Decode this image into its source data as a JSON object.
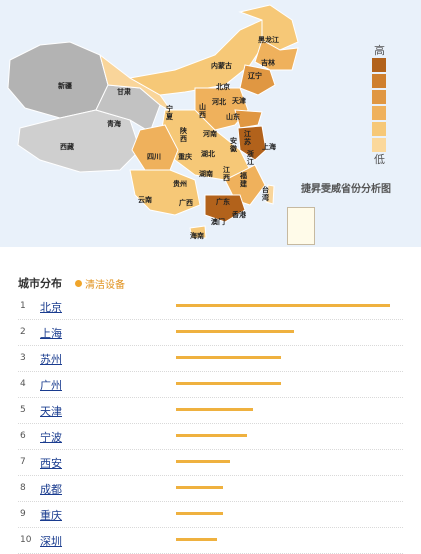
{
  "map": {
    "title": "捷昇雯威省份分析图",
    "legend_high": "高",
    "legend_low": "低",
    "legend_colors": [
      "#b2621b",
      "#cf7f2d",
      "#e09742",
      "#efb15c",
      "#f6c877",
      "#fbd89b"
    ],
    "provinces": [
      "黑龙江",
      "吉林",
      "辽宁",
      "内蒙古",
      "北京",
      "天津",
      "河北",
      "山西",
      "山东",
      "宁夏",
      "甘肃",
      "新疆",
      "西藏",
      "青海",
      "陕西",
      "河南",
      "江苏",
      "安徽",
      "上海",
      "湖北",
      "四川",
      "重庆",
      "浙江",
      "贵州",
      "湖南",
      "江西",
      "福建",
      "台湾",
      "云南",
      "广西",
      "广东",
      "香港",
      "澳门",
      "海南"
    ]
  },
  "list": {
    "title": "城市分布",
    "legend_label": "清洁设备",
    "rows": [
      {
        "rank": "1",
        "city": "北京",
        "value": 100
      },
      {
        "rank": "2",
        "city": "上海",
        "value": 55
      },
      {
        "rank": "3",
        "city": "苏州",
        "value": 49
      },
      {
        "rank": "4",
        "city": "广州",
        "value": 49
      },
      {
        "rank": "5",
        "city": "天津",
        "value": 36
      },
      {
        "rank": "6",
        "city": "宁波",
        "value": 33
      },
      {
        "rank": "7",
        "city": "西安",
        "value": 25
      },
      {
        "rank": "8",
        "city": "成都",
        "value": 22
      },
      {
        "rank": "9",
        "city": "重庆",
        "value": 22
      },
      {
        "rank": "10",
        "city": "深圳",
        "value": 19
      }
    ]
  }
}
